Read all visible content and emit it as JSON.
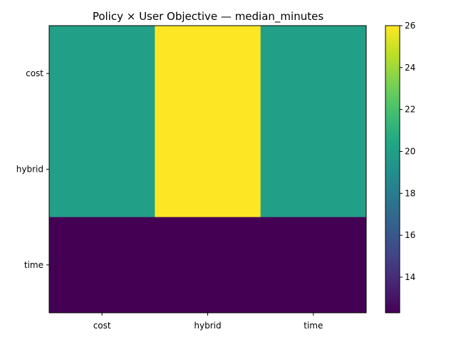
{
  "chart_data": {
    "type": "heatmap",
    "title": "Policy × User Objective — median_minutes",
    "xlabel": "",
    "ylabel": "",
    "x_categories": [
      "cost",
      "hybrid",
      "time"
    ],
    "y_categories": [
      "cost",
      "hybrid",
      "time"
    ],
    "values": [
      [
        20,
        26,
        20
      ],
      [
        20,
        26,
        20
      ],
      [
        12.3,
        12.3,
        12.3
      ]
    ],
    "colormap": "viridis",
    "colorbar": {
      "min": 12.3,
      "max": 26,
      "ticks": [
        14,
        16,
        18,
        20,
        22,
        24,
        26
      ]
    },
    "grid": false
  }
}
